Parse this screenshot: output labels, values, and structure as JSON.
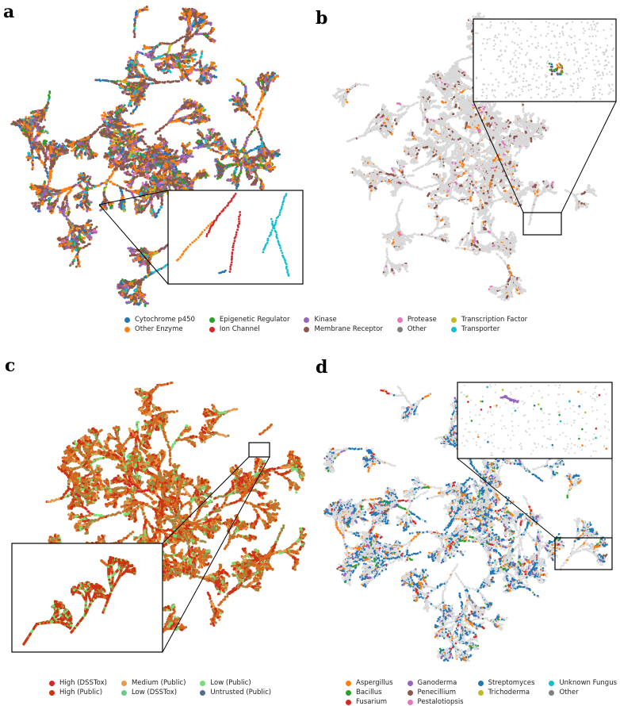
{
  "panels": {
    "a": {
      "letter": "a"
    },
    "b": {
      "letter": "b"
    },
    "c": {
      "letter": "c"
    },
    "d": {
      "letter": "d"
    }
  },
  "legend_top": {
    "items": [
      {
        "label": "Cytochrome p450",
        "color": "#1f77b4"
      },
      {
        "label": "Epigenetic Regulator",
        "color": "#2ca02c"
      },
      {
        "label": "Kinase",
        "color": "#9467bd"
      },
      {
        "label": "Protease",
        "color": "#e377c2"
      },
      {
        "label": "Transcription Factor",
        "color": "#bcbd22"
      },
      {
        "label": "Other Enzyme",
        "color": "#ff7f0e"
      },
      {
        "label": "Ion Channel",
        "color": "#d62728"
      },
      {
        "label": "Membrane Receptor",
        "color": "#8c564b"
      },
      {
        "label": "Other",
        "color": "#7f7f7f"
      },
      {
        "label": "Transporter",
        "color": "#17becf"
      }
    ]
  },
  "legend_c": {
    "items": [
      {
        "label": "High (DSSTox)",
        "color": "#d62728"
      },
      {
        "label": "Medium (Public)",
        "color": "#e69a4b"
      },
      {
        "label": "Low (Public)",
        "color": "#77dd77"
      },
      {
        "label": "High (Public)",
        "color": "#cc3311"
      },
      {
        "label": "Low (DSSTox)",
        "color": "#66cc88"
      },
      {
        "label": "Untrusted (Public)",
        "color": "#556b8a"
      }
    ]
  },
  "legend_d": {
    "items": [
      {
        "label": "Aspergillus",
        "color": "#ff7f0e"
      },
      {
        "label": "Ganoderma",
        "color": "#9467bd"
      },
      {
        "label": "Streptomyces",
        "color": "#1f77b4"
      },
      {
        "label": "Unknown Fungus",
        "color": "#17becf"
      },
      {
        "label": "Bacillus",
        "color": "#2ca02c"
      },
      {
        "label": "Penecillium",
        "color": "#8c564b"
      },
      {
        "label": "Trichoderma",
        "color": "#bcbd22"
      },
      {
        "label": "Other",
        "color": "#7f7f7f"
      },
      {
        "label": "Fusarium",
        "color": "#d62728"
      },
      {
        "label": "Pestalotiopsis",
        "color": "#e377c2"
      }
    ]
  }
}
